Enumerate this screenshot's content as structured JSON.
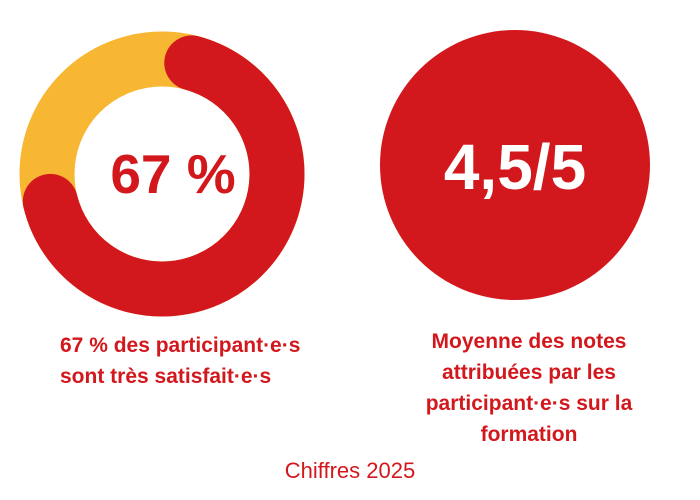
{
  "colors": {
    "primary_red": "#d3181d",
    "accent_yellow": "#f7b733",
    "white": "#ffffff"
  },
  "footer": {
    "label": "Chiffres 2025"
  },
  "chart_data": [
    {
      "type": "donut",
      "value": 67,
      "max": 100,
      "remainder": 33,
      "center_label": "67 %",
      "caption_lines": [
        "67 % des participant·e·s",
        "sont très satisfait·e·s"
      ],
      "series": [
        {
          "name": "",
          "value": 67,
          "color": "#d3181d"
        },
        {
          "name": "",
          "value": 33,
          "color": "#f7b733"
        }
      ]
    },
    {
      "type": "stat-circle",
      "value": 4.5,
      "max": 5,
      "center_label": "4,5/5",
      "caption_lines": [
        "Moyenne des notes",
        "attribuées par les",
        "participant·e·s sur la",
        "formation"
      ],
      "color": "#d3181d"
    }
  ]
}
